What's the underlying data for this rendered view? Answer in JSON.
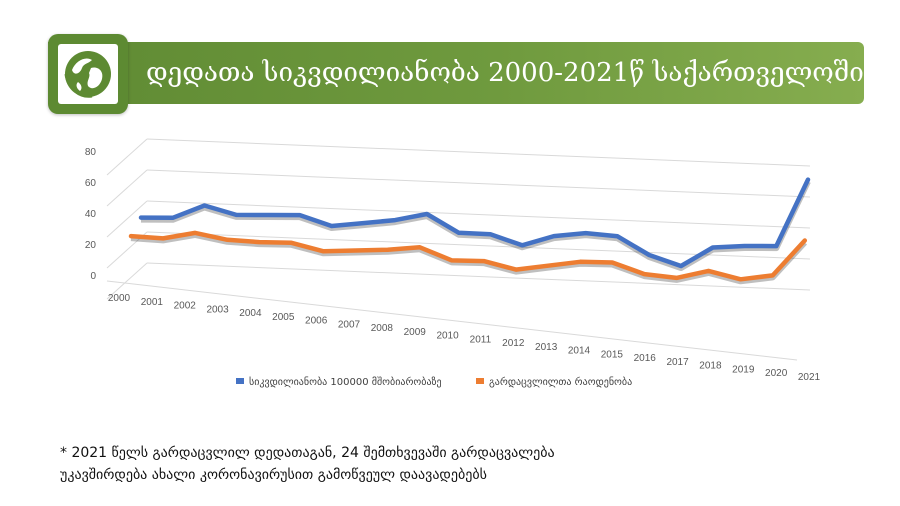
{
  "header": {
    "title": "დედათა სიკვდილიანობა 2000-2021წ საქართველოში",
    "logo_icon": "globe-icon",
    "banner_color": "#6f9a3e"
  },
  "chart_data": {
    "type": "line",
    "title": "",
    "xlabel": "",
    "ylabel": "",
    "ylim": [
      0,
      80
    ],
    "yticks": [
      "0",
      "20",
      "40",
      "60",
      "80"
    ],
    "grid": true,
    "legend_position": "bottom",
    "categories": [
      "2000",
      "2001",
      "2002",
      "2003",
      "2004",
      "2005",
      "2006",
      "2007",
      "2008",
      "2009",
      "2010",
      "2011",
      "2012",
      "2013",
      "2014",
      "2015",
      "2016",
      "2017",
      "2018",
      "2019",
      "2020",
      "2021"
    ],
    "series": [
      {
        "name": "სიკვდილიანობა 100000 მშობიარობაზე",
        "color": "#4472c4",
        "values": [
          31,
          32,
          41,
          36,
          37,
          38,
          32,
          35,
          38,
          43,
          32,
          32,
          26,
          33,
          36,
          35,
          24,
          18,
          31,
          33,
          34,
          78
        ]
      },
      {
        "name": "გარდაცვლილთა რაოდენობა",
        "color": "#ed7d31",
        "values": [
          22,
          22,
          27,
          24,
          24,
          25,
          21,
          23,
          25,
          28,
          21,
          22,
          18,
          22,
          26,
          27,
          21,
          20,
          26,
          22,
          26,
          50
        ]
      }
    ]
  },
  "footnote": {
    "line1": "* 2021 წელს გარდაცვლილ დედათაგან, 24 შემთხვევაში გარდაცვალება",
    "line2": "უკავშირდება ახალი კორონავირუსით გამოწვეულ დაავადებებს"
  }
}
